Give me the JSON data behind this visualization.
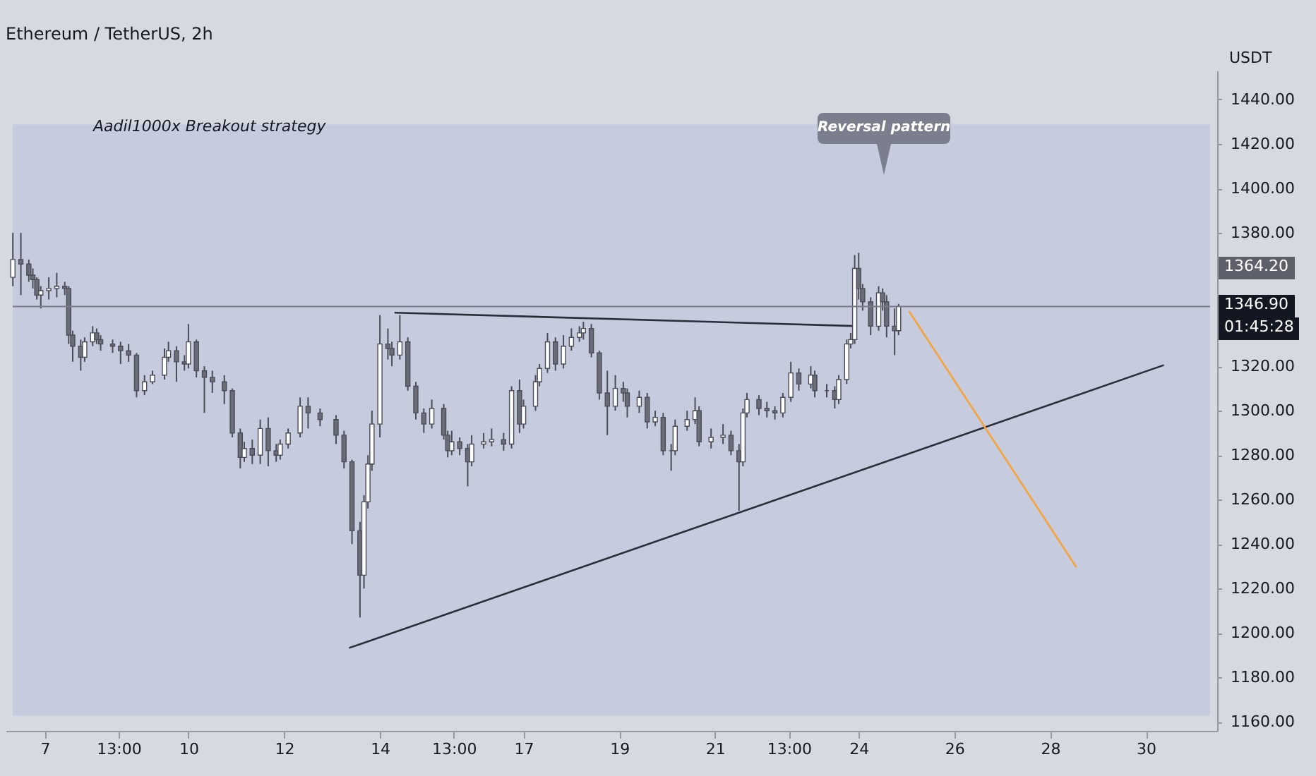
{
  "chart_data": {
    "type": "candlestick",
    "title": "Ethereum / TetherUS, 2h",
    "ylabel": "USDT",
    "xlim": [
      "--10-06T07:55",
      "--10-31T08:10"
    ],
    "ylim": [
      1156,
      1453
    ],
    "xticks": [
      {
        "value": "--10-07",
        "label": "7"
      },
      {
        "value": "--10-08T13:00",
        "label": "13:00"
      },
      {
        "value": "--10-10",
        "label": "10"
      },
      {
        "value": "--10-12",
        "label": "12"
      },
      {
        "value": "--10-14",
        "label": "14"
      },
      {
        "value": "--10-15T13:00",
        "label": "13:00"
      },
      {
        "value": "--10-17",
        "label": "17"
      },
      {
        "value": "--10-19",
        "label": "19"
      },
      {
        "value": "--10-21",
        "label": "21"
      },
      {
        "value": "--10-22T13:00",
        "label": "13:00"
      },
      {
        "value": "--10-24",
        "label": "24"
      },
      {
        "value": "--10-26",
        "label": "26"
      },
      {
        "value": "--10-28",
        "label": "28"
      },
      {
        "value": "--10-30",
        "label": "30"
      }
    ],
    "yticks": [
      {
        "value": 1160,
        "label": "1160.00"
      },
      {
        "value": 1180,
        "label": "1180.00"
      },
      {
        "value": 1200,
        "label": "1200.00"
      },
      {
        "value": 1220,
        "label": "1220.00"
      },
      {
        "value": 1240,
        "label": "1240.00"
      },
      {
        "value": 1260,
        "label": "1260.00"
      },
      {
        "value": 1280,
        "label": "1280.00"
      },
      {
        "value": 1300,
        "label": "1300.00"
      },
      {
        "value": 1320,
        "label": "1320.00"
      },
      {
        "value": 1380,
        "label": "1380.00"
      },
      {
        "value": 1400,
        "label": "1400.00"
      },
      {
        "value": 1420,
        "label": "1420.00"
      },
      {
        "value": 1440,
        "label": "1440.00"
      }
    ],
    "x": [
      "--10-06T08:00",
      "--10-06T12:00",
      "--10-06T16:00",
      "--10-06T18:00",
      "--10-06T20:00",
      "--10-06T22:00",
      "--10-07T02:00",
      "--10-07T06:00",
      "--10-07T10:00",
      "--10-07T12:00",
      "--10-07T14:00",
      "--10-07T18:00",
      "--10-07T20:00",
      "--10-08T00:00",
      "--10-08T02:00",
      "--10-08T04:00",
      "--10-08T10:00",
      "--10-08T14:00",
      "--10-08T18:00",
      "--10-08T22:00",
      "--10-09T02:00",
      "--10-09T06:00",
      "--10-09T12:00",
      "--10-09T14:00",
      "--10-09T18:00",
      "--10-09T22:00",
      "--10-10T00:00",
      "--10-10T04:00",
      "--10-10T08:00",
      "--10-10T12:00",
      "--10-10T18:00",
      "--10-10T22:00",
      "--10-11T02:00",
      "--10-11T04:00",
      "--10-11T08:00",
      "--10-11T12:00",
      "--10-11T16:00",
      "--10-11T20:00",
      "--10-11T22:00",
      "--10-12T02:00",
      "--10-12T08:00",
      "--10-12T12:00",
      "--10-12T18:00",
      "--10-13T02:00",
      "--10-13T06:00",
      "--10-13T10:00",
      "--10-13T14:00",
      "--10-13T16:00",
      "--10-13T18:00",
      "--10-13T20:00",
      "--10-14T00:00",
      "--10-14T04:00",
      "--10-14T06:00",
      "--10-14T10:00",
      "--10-14T14:00",
      "--10-14T18:00",
      "--10-14T22:00",
      "--10-15T02:00",
      "--10-15T08:00",
      "--10-15T10:00",
      "--10-15T12:00",
      "--10-15T16:00",
      "--10-15T20:00",
      "--10-15T22:00",
      "--10-16T04:00",
      "--10-16T08:00",
      "--10-16T14:00",
      "--10-16T18:00",
      "--10-16T22:00",
      "--10-17T00:00",
      "--10-17T06:00",
      "--10-17T08:00",
      "--10-17T12:00",
      "--10-17T16:00",
      "--10-17T20:00",
      "--10-18T00:00",
      "--10-18T04:00",
      "--10-18T06:00",
      "--10-18T10:00",
      "--10-18T14:00",
      "--10-18T18:00",
      "--10-18T22:00",
      "--10-19T02:00",
      "--10-19T04:00",
      "--10-19T10:00",
      "--10-19T14:00",
      "--10-19T18:00",
      "--10-19T22:00",
      "--10-20T02:00",
      "--10-20T04:00",
      "--10-20T10:00",
      "--10-20T14:00",
      "--10-20T16:00",
      "--10-20T22:00",
      "--10-21T04:00",
      "--10-21T08:00",
      "--10-21T12:00",
      "--10-21T14:00",
      "--10-21T16:00",
      "--10-21T22:00",
      "--10-22T02:00",
      "--10-22T06:00",
      "--10-22T10:00",
      "--10-22T14:00",
      "--10-22T18:00",
      "--10-23T00:00",
      "--10-23T02:00",
      "--10-23T08:00",
      "--10-23T12:00",
      "--10-23T14:00",
      "--10-23T18:00",
      "--10-23T20:00",
      "--10-23T22:00",
      "--10-24T00:00",
      "--10-24T02:00",
      "--10-24T06:00",
      "--10-24T10:00",
      "--10-24T12:00",
      "--10-24T14:00",
      "--10-24T18:00",
      "--10-24T20:00"
    ],
    "ohlc": [
      [
        1360,
        1380,
        1356,
        1368
      ],
      [
        1368,
        1380,
        1352,
        1366
      ],
      [
        1366,
        1368,
        1358,
        1361
      ],
      [
        1361,
        1364,
        1355,
        1359
      ],
      [
        1359,
        1360,
        1350,
        1352
      ],
      [
        1352,
        1356,
        1346,
        1354
      ],
      [
        1354,
        1360,
        1350,
        1355
      ],
      [
        1355,
        1362,
        1351,
        1356
      ],
      [
        1356,
        1358,
        1352,
        1355
      ],
      [
        1355,
        1356,
        1330,
        1334
      ],
      [
        1334,
        1336,
        1322,
        1329
      ],
      [
        1329,
        1332,
        1318,
        1324
      ],
      [
        1324,
        1333,
        1322,
        1331
      ],
      [
        1331,
        1338,
        1329,
        1335
      ],
      [
        1335,
        1337,
        1330,
        1332
      ],
      [
        1332,
        1334,
        1327,
        1330
      ],
      [
        1330,
        1332,
        1326,
        1329
      ],
      [
        1329,
        1331,
        1321,
        1327
      ],
      [
        1327,
        1330,
        1322,
        1325
      ],
      [
        1325,
        1326,
        1306,
        1309
      ],
      [
        1309,
        1316,
        1307,
        1313
      ],
      [
        1313,
        1318,
        1312,
        1316
      ],
      [
        1316,
        1328,
        1314,
        1324
      ],
      [
        1324,
        1331,
        1322,
        1327
      ],
      [
        1327,
        1329,
        1313,
        1322
      ],
      [
        1322,
        1325,
        1318,
        1321
      ],
      [
        1321,
        1339,
        1319,
        1331
      ],
      [
        1331,
        1332,
        1315,
        1318
      ],
      [
        1318,
        1320,
        1299,
        1315
      ],
      [
        1315,
        1318,
        1308,
        1313
      ],
      [
        1313,
        1316,
        1303,
        1309
      ],
      [
        1309,
        1310,
        1288,
        1290
      ],
      [
        1290,
        1292,
        1274,
        1279
      ],
      [
        1279,
        1286,
        1277,
        1283
      ],
      [
        1283,
        1287,
        1276,
        1280
      ],
      [
        1280,
        1296,
        1276,
        1292
      ],
      [
        1292,
        1297,
        1275,
        1282
      ],
      [
        1282,
        1285,
        1277,
        1280
      ],
      [
        1280,
        1287,
        1278,
        1285
      ],
      [
        1285,
        1292,
        1283,
        1290
      ],
      [
        1290,
        1306,
        1288,
        1302
      ],
      [
        1302,
        1306,
        1292,
        1299
      ],
      [
        1299,
        1301,
        1293,
        1296
      ],
      [
        1296,
        1298,
        1285,
        1289
      ],
      [
        1289,
        1291,
        1274,
        1277
      ],
      [
        1277,
        1278,
        1240,
        1246
      ],
      [
        1246,
        1250,
        1207,
        1226
      ],
      [
        1226,
        1262,
        1220,
        1259
      ],
      [
        1259,
        1280,
        1256,
        1276
      ],
      [
        1276,
        1300,
        1273,
        1294
      ],
      [
        1294,
        1343,
        1288,
        1330
      ],
      [
        1330,
        1337,
        1323,
        1328
      ],
      [
        1328,
        1331,
        1320,
        1325
      ],
      [
        1325,
        1343,
        1323,
        1331
      ],
      [
        1331,
        1333,
        1309,
        1311
      ],
      [
        1311,
        1313,
        1296,
        1299
      ],
      [
        1299,
        1301,
        1290,
        1294
      ],
      [
        1294,
        1305,
        1292,
        1301
      ],
      [
        1301,
        1303,
        1287,
        1289
      ],
      [
        1289,
        1291,
        1279,
        1282
      ],
      [
        1282,
        1291,
        1280,
        1286
      ],
      [
        1286,
        1288,
        1280,
        1283
      ],
      [
        1283,
        1285,
        1266,
        1277
      ],
      [
        1277,
        1289,
        1275,
        1285
      ],
      [
        1285,
        1290,
        1283,
        1286
      ],
      [
        1286,
        1292,
        1284,
        1287
      ],
      [
        1287,
        1290,
        1282,
        1285
      ],
      [
        1285,
        1311,
        1283,
        1309
      ],
      [
        1309,
        1314,
        1290,
        1294
      ],
      [
        1294,
        1305,
        1292,
        1302
      ],
      [
        1302,
        1316,
        1300,
        1313
      ],
      [
        1313,
        1321,
        1311,
        1319
      ],
      [
        1319,
        1335,
        1317,
        1331
      ],
      [
        1331,
        1333,
        1318,
        1321
      ],
      [
        1321,
        1334,
        1319,
        1329
      ],
      [
        1329,
        1337,
        1327,
        1333
      ],
      [
        1333,
        1338,
        1331,
        1335
      ],
      [
        1335,
        1340,
        1332,
        1337
      ],
      [
        1337,
        1339,
        1324,
        1326
      ],
      [
        1326,
        1327,
        1305,
        1308
      ],
      [
        1308,
        1318,
        1289,
        1302
      ],
      [
        1302,
        1316,
        1300,
        1310
      ],
      [
        1310,
        1313,
        1304,
        1308
      ],
      [
        1308,
        1310,
        1297,
        1302
      ],
      [
        1302,
        1309,
        1299,
        1306
      ],
      [
        1306,
        1308,
        1292,
        1295
      ],
      [
        1295,
        1300,
        1293,
        1297
      ],
      [
        1297,
        1299,
        1280,
        1282
      ],
      [
        1282,
        1285,
        1273,
        1282
      ],
      [
        1282,
        1296,
        1280,
        1293
      ],
      [
        1293,
        1300,
        1291,
        1296
      ],
      [
        1296,
        1306,
        1294,
        1300
      ],
      [
        1300,
        1302,
        1284,
        1286
      ],
      [
        1286,
        1292,
        1283,
        1288
      ],
      [
        1288,
        1294,
        1285,
        1289
      ],
      [
        1289,
        1291,
        1280,
        1282
      ],
      [
        1282,
        1285,
        1255,
        1277
      ],
      [
        1277,
        1301,
        1275,
        1299
      ],
      [
        1299,
        1308,
        1297,
        1305
      ],
      [
        1305,
        1307,
        1298,
        1301
      ],
      [
        1301,
        1304,
        1297,
        1300
      ],
      [
        1300,
        1302,
        1296,
        1299
      ],
      [
        1299,
        1308,
        1297,
        1306
      ],
      [
        1306,
        1322,
        1304,
        1317
      ],
      [
        1317,
        1319,
        1309,
        1312
      ],
      [
        1312,
        1320,
        1310,
        1316
      ],
      [
        1316,
        1318,
        1306,
        1309
      ],
      [
        1309,
        1312,
        1306,
        1309
      ],
      [
        1309,
        1311,
        1301,
        1305
      ],
      [
        1305,
        1316,
        1303,
        1314
      ],
      [
        1314,
        1332,
        1312,
        1330
      ],
      [
        1330,
        1335,
        1328,
        1332
      ],
      [
        1332,
        1370,
        1330,
        1364
      ],
      [
        1364,
        1371,
        1350,
        1355
      ],
      [
        1355,
        1357,
        1345,
        1349
      ],
      [
        1349,
        1351,
        1334,
        1338
      ],
      [
        1338,
        1356,
        1336,
        1353
      ],
      [
        1353,
        1355,
        1345,
        1349
      ],
      [
        1349,
        1352,
        1333,
        1338
      ],
      [
        1338,
        1346,
        1325,
        1336
      ],
      [
        1336,
        1348,
        1334,
        1346.9
      ]
    ],
    "series": [
      {
        "type": "line",
        "x": [
          "--10-14T07:41",
          "--10-23T21:36"
        ],
        "values": [
          1344.1,
          1338.1
        ],
        "color": "#2a2e39"
      },
      {
        "type": "line",
        "x": [
          "--10-13T08:53",
          "--10-30T08:38"
        ],
        "values": [
          1193.4,
          1320.4
        ],
        "color": "#2a2e39"
      },
      {
        "type": "line",
        "x": [
          "--10-25T01:26",
          "--10-28T12:58"
        ],
        "values": [
          1344.5,
          1229.8
        ],
        "color": "#f5a33a"
      }
    ],
    "bands": [
      {
        "axis": "y",
        "from": 1162.8,
        "to": 1428.7,
        "color": "#c6cbdd"
      }
    ],
    "ref_lines": [
      {
        "axis": "y",
        "value": 1346.9,
        "label": "1346.90",
        "color": "#787b86"
      }
    ],
    "annotations": [
      "Aadil1000x Breakout strategy",
      "01:45:28",
      "Reversal pattern",
      "1364.20"
    ]
  }
}
